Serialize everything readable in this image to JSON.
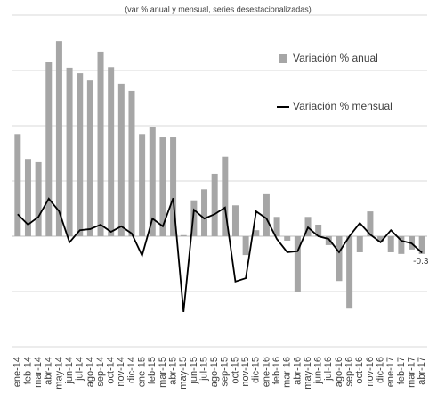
{
  "chart_data": {
    "type": "bar-line",
    "subtitle": "(var % anual y mensual, series desestacionalizadas)",
    "categories": [
      "ene-14",
      "feb-14",
      "mar-14",
      "abr-14",
      "may-14",
      "jun-14",
      "jul-14",
      "ago-14",
      "sep-14",
      "oct-14",
      "nov-14",
      "dic-14",
      "ene-15",
      "feb-15",
      "mar-15",
      "abr-15",
      "may-15",
      "jun-15",
      "jul-15",
      "ago-15",
      "sep-15",
      "oct-15",
      "nov-15",
      "dic-15",
      "ene-16",
      "feb-16",
      "mar-16",
      "abr-16",
      "may-16",
      "jun-16",
      "jul-16",
      "ago-16",
      "sep-16",
      "oct-16",
      "nov-16",
      "dic-16",
      "ene-17",
      "feb-17",
      "mar-17",
      "abr-17"
    ],
    "series": [
      {
        "name": "Variación % anual",
        "type": "bar",
        "color": "#a6a6a6",
        "values": [
          1.85,
          1.4,
          1.34,
          3.15,
          3.53,
          3.05,
          2.95,
          2.82,
          3.34,
          3.06,
          2.76,
          2.63,
          1.85,
          1.98,
          1.79,
          1.79,
          0.02,
          0.65,
          0.85,
          1.13,
          1.44,
          0.56,
          -0.34,
          0.11,
          0.76,
          0.35,
          -0.08,
          -1.0,
          0.35,
          0.21,
          -0.16,
          -0.81,
          -1.31,
          -0.29,
          0.45,
          -0.11,
          -0.29,
          -0.32,
          -0.24,
          -0.32
        ]
      },
      {
        "name": "Variación % mensual",
        "type": "line",
        "color": "#000000",
        "label_last": true,
        "values": [
          0.4,
          0.21,
          0.35,
          0.68,
          0.45,
          -0.11,
          0.11,
          0.13,
          0.21,
          0.08,
          0.18,
          0.05,
          -0.35,
          0.32,
          0.18,
          0.69,
          -1.37,
          0.48,
          0.32,
          0.4,
          0.52,
          -0.82,
          -0.76,
          0.45,
          0.32,
          -0.05,
          -0.29,
          -0.27,
          0.16,
          0,
          -0.05,
          -0.29,
          0,
          0.24,
          0.03,
          -0.11,
          0.11,
          -0.08,
          -0.13,
          -0.3
        ]
      }
    ],
    "ylim": [
      -2,
      4
    ],
    "yticks": [
      -2,
      -1,
      0,
      1,
      2,
      3,
      4
    ],
    "grid": true,
    "legend": "upper right"
  }
}
